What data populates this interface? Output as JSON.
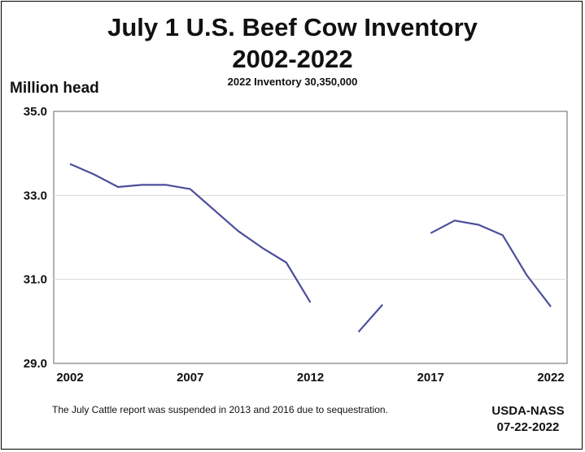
{
  "chart_data": {
    "type": "line",
    "title_line1": "July 1 U.S. Beef Cow Inventory",
    "title_line2": "2002-2022",
    "subtitle": "2022 Inventory 30,350,000",
    "ylabel": "Million head",
    "xlabel": "",
    "ylim": [
      29.0,
      35.0
    ],
    "yticks": [
      29.0,
      31.0,
      33.0,
      35.0
    ],
    "ytick_labels": [
      "29.0",
      "31.0",
      "33.0",
      "35.0"
    ],
    "xlim": [
      2002,
      2022
    ],
    "xticks": [
      2002,
      2007,
      2012,
      2017,
      2022
    ],
    "xtick_labels": [
      "2002",
      "2007",
      "2012",
      "2017",
      "2022"
    ],
    "grid": true,
    "line_color": "#4b4f9b",
    "series": [
      {
        "name": "Beef cow inventory",
        "x": [
          2002,
          2003,
          2004,
          2005,
          2006,
          2007,
          2008,
          2009,
          2010,
          2011,
          2012,
          2013,
          2014,
          2015,
          2016,
          2017,
          2018,
          2019,
          2020,
          2021,
          2022
        ],
        "values": [
          33.75,
          33.5,
          33.2,
          33.25,
          33.25,
          33.15,
          32.65,
          32.15,
          31.75,
          31.4,
          30.45,
          null,
          29.75,
          30.4,
          null,
          32.1,
          32.4,
          32.3,
          32.05,
          31.1,
          30.35
        ]
      }
    ]
  },
  "footnote": "The July Cattle report was suspended in 2013 and 2016 due to sequestration.",
  "source_line1": "USDA-NASS",
  "source_line2": "07-22-2022"
}
